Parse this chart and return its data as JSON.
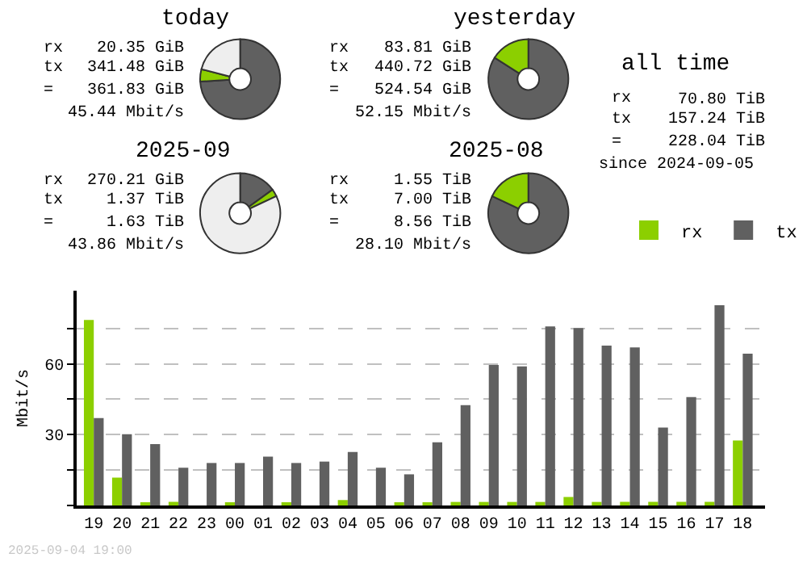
{
  "chart_data": [
    {
      "type": "donut",
      "title": "today",
      "categories": [
        null,
        null,
        null
      ],
      "values": [
        74,
        5,
        21
      ],
      "colors": [
        "#606060",
        "#8ccf00",
        "#eeeeee"
      ],
      "annotations": [
        "rx 20.35 GiB",
        "tx 341.48 GiB",
        "= 361.83 GiB",
        "45.44 Mbit/s"
      ]
    },
    {
      "type": "donut",
      "title": "yesterday",
      "categories": [
        null,
        null
      ],
      "values": [
        84,
        16
      ],
      "colors": [
        "#606060",
        "#8ccf00"
      ],
      "annotations": [
        "rx 83.81 GiB",
        "tx 440.72 GiB",
        "= 524.54 GiB",
        "52.15 Mbit/s"
      ]
    },
    {
      "type": "other",
      "title": "all time",
      "annotations": [
        "rx 70.80 TiB",
        "tx 157.24 TiB",
        "= 228.04 TiB",
        "since 2024-09-05"
      ]
    },
    {
      "type": "donut",
      "title": "2025-09",
      "categories": [
        null,
        null,
        null
      ],
      "values": [
        15,
        3,
        82
      ],
      "colors": [
        "#606060",
        "#8ccf00",
        "#eeeeee"
      ],
      "annotations": [
        "rx 270.21 GiB",
        "tx 1.37 TiB",
        "= 1.63 TiB",
        "43.86 Mbit/s"
      ]
    },
    {
      "type": "donut",
      "title": "2025-08",
      "categories": [
        null,
        null
      ],
      "values": [
        82,
        18
      ],
      "colors": [
        "#606060",
        "#8ccf00"
      ],
      "annotations": [
        "rx 1.55 TiB",
        "tx 7.00 TiB",
        "= 8.56 TiB",
        "28.10 Mbit/s"
      ]
    },
    {
      "type": "bar",
      "ylabel": "Mbit/s",
      "categories": [
        "19",
        "20",
        "21",
        "22",
        "23",
        "00",
        "01",
        "02",
        "03",
        "04",
        "05",
        "06",
        "07",
        "08",
        "09",
        "10",
        "11",
        "12",
        "13",
        "14",
        "15",
        "16",
        "17",
        "18"
      ],
      "series": [
        {
          "name": "rx",
          "color": "#8ccf00",
          "values": [
            78.6,
            11.8,
            1,
            1.5,
            0,
            1,
            0,
            1,
            0,
            2.3,
            0,
            1,
            1,
            1.5,
            1.5,
            1.5,
            1.5,
            3.6,
            1.5,
            1.5,
            1.5,
            1.5,
            1.5,
            27.5
          ]
        },
        {
          "name": "tx",
          "color": "#606060",
          "values": [
            37,
            30.2,
            26,
            16,
            18,
            18,
            20.7,
            18,
            18.6,
            22.7,
            16,
            13.2,
            26.8,
            42.5,
            59.5,
            58.9,
            75.9,
            75.2,
            67.7,
            67,
            33,
            45.9,
            84.8,
            64.3
          ]
        }
      ],
      "ylim": [
        0,
        91
      ],
      "yticks": [
        {
          "value": 0,
          "label": null
        },
        {
          "value": 15,
          "label": null
        },
        30,
        {
          "value": 45,
          "label": null
        },
        60,
        {
          "value": 75,
          "label": null
        }
      ],
      "grid": "y",
      "legend": "top right",
      "annotations": [
        "2025-09-04 19:00"
      ]
    }
  ]
}
